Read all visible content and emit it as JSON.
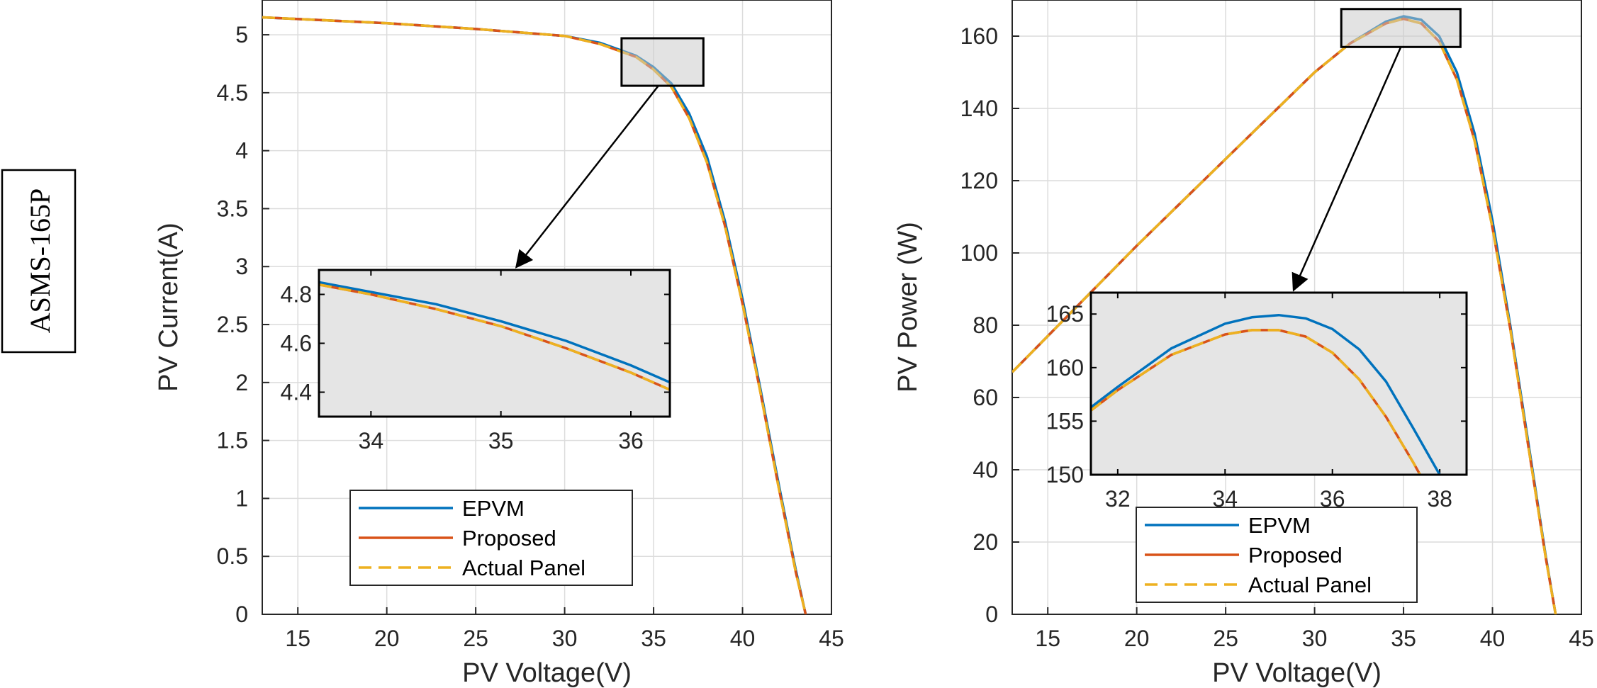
{
  "side_label": "ASMS-165P",
  "colors": {
    "epvm": "#0072BD",
    "proposed": "#D95319",
    "actual": "#EDB120",
    "inset_bg": "#e5e5e5",
    "grid": "#dcdcdc"
  },
  "chart_data": [
    {
      "type": "line",
      "title": "",
      "xlabel": "PV Voltage(V)",
      "ylabel": "PV Current(A)",
      "xlim": [
        13,
        45
      ],
      "ylim": [
        0,
        5.3
      ],
      "xticks": [
        "15",
        "20",
        "25",
        "30",
        "35",
        "40",
        "45"
      ],
      "yticks": [
        "0",
        "0.5",
        "1",
        "1.5",
        "2",
        "2.5",
        "3",
        "3.5",
        "4",
        "4.5",
        "5"
      ],
      "legend": [
        "EPVM",
        "Proposed",
        "Actual Panel"
      ],
      "series": [
        {
          "name": "EPVM",
          "x": [
            13,
            20,
            25,
            30,
            32,
            34,
            35,
            36,
            37,
            38,
            39,
            40,
            41,
            42,
            43,
            43.55
          ],
          "y": [
            5.15,
            5.1,
            5.05,
            4.99,
            4.93,
            4.82,
            4.72,
            4.58,
            4.32,
            3.95,
            3.4,
            2.72,
            1.95,
            1.15,
            0.38,
            0
          ]
        },
        {
          "name": "Proposed",
          "x": [
            13,
            20,
            25,
            30,
            32,
            34,
            35,
            36,
            37,
            38,
            39,
            40,
            41,
            42,
            43,
            43.55
          ],
          "y": [
            5.15,
            5.1,
            5.05,
            4.99,
            4.92,
            4.81,
            4.7,
            4.55,
            4.28,
            3.9,
            3.36,
            2.68,
            1.92,
            1.12,
            0.36,
            0
          ]
        },
        {
          "name": "Actual Panel",
          "x": [
            13,
            20,
            25,
            30,
            32,
            34,
            35,
            36,
            37,
            38,
            39,
            40,
            41,
            42,
            43,
            43.55
          ],
          "y": [
            5.15,
            5.1,
            5.05,
            4.99,
            4.92,
            4.81,
            4.7,
            4.55,
            4.28,
            3.9,
            3.36,
            2.68,
            1.92,
            1.12,
            0.36,
            0
          ]
        }
      ],
      "inset": {
        "xlim": [
          33.6,
          36.3
        ],
        "ylim": [
          4.3,
          4.9
        ],
        "xticks": [
          "34",
          "35",
          "36"
        ],
        "yticks": [
          "4.4",
          "4.6",
          "4.8"
        ],
        "zoom_box": {
          "xlim": [
            33.2,
            37.8
          ],
          "ylim": [
            4.56,
            4.97
          ]
        },
        "series": [
          {
            "name": "EPVM",
            "x": [
              33.6,
              34,
              34.5,
              35,
              35.5,
              36,
              36.3
            ],
            "y": [
              4.85,
              4.81,
              4.76,
              4.69,
              4.61,
              4.51,
              4.44
            ]
          },
          {
            "name": "Proposed",
            "x": [
              33.6,
              34,
              34.5,
              35,
              35.5,
              36,
              36.3
            ],
            "y": [
              4.84,
              4.8,
              4.74,
              4.67,
              4.58,
              4.48,
              4.41
            ]
          },
          {
            "name": "Actual Panel",
            "x": [
              33.6,
              34,
              34.5,
              35,
              35.5,
              36,
              36.3
            ],
            "y": [
              4.84,
              4.8,
              4.74,
              4.67,
              4.58,
              4.48,
              4.41
            ]
          }
        ]
      }
    },
    {
      "type": "line",
      "title": "",
      "xlabel": "PV Voltage(V)",
      "ylabel": "PV Power (W)",
      "xlim": [
        13,
        45
      ],
      "ylim": [
        0,
        170
      ],
      "xticks": [
        "15",
        "20",
        "25",
        "30",
        "35",
        "40",
        "45"
      ],
      "yticks": [
        "0",
        "20",
        "40",
        "60",
        "80",
        "100",
        "120",
        "140",
        "160"
      ],
      "legend": [
        "EPVM",
        "Proposed",
        "Actual Panel"
      ],
      "series": [
        {
          "name": "EPVM",
          "x": [
            13,
            20,
            25,
            30,
            32,
            34,
            35,
            36,
            37,
            38,
            39,
            40,
            41,
            42,
            43,
            43.55
          ],
          "y": [
            67,
            102,
            126,
            150,
            158,
            164,
            165.5,
            164.5,
            160,
            150,
            133,
            109,
            80,
            48,
            16,
            0
          ]
        },
        {
          "name": "Proposed",
          "x": [
            13,
            20,
            25,
            30,
            32,
            34,
            35,
            36,
            37,
            38,
            39,
            40,
            41,
            42,
            43,
            43.55
          ],
          "y": [
            67,
            102,
            126,
            150,
            158,
            163.5,
            164.8,
            163.5,
            158.5,
            148,
            131,
            107,
            79,
            47,
            15.5,
            0
          ]
        },
        {
          "name": "Actual Panel",
          "x": [
            13,
            20,
            25,
            30,
            32,
            34,
            35,
            36,
            37,
            38,
            39,
            40,
            41,
            42,
            43,
            43.55
          ],
          "y": [
            67,
            102,
            126,
            150,
            158,
            163.5,
            164.8,
            163.5,
            158.5,
            148,
            131,
            107,
            79,
            47,
            15.5,
            0
          ]
        }
      ],
      "inset": {
        "xlim": [
          31.5,
          38.5
        ],
        "ylim": [
          150,
          167
        ],
        "xticks": [
          "32",
          "34",
          "36",
          "38"
        ],
        "yticks": [
          "150",
          "155",
          "160",
          "165"
        ],
        "zoom_box": {
          "xlim": [
            31.5,
            38.2
          ],
          "ylim": [
            157,
            167.5
          ]
        },
        "series": [
          {
            "name": "EPVM",
            "x": [
              31.5,
              32,
              33,
              34,
              34.5,
              35,
              35.5,
              36,
              36.5,
              37,
              37.5,
              38
            ],
            "y": [
              156.3,
              158.2,
              161.8,
              164.1,
              164.7,
              164.9,
              164.6,
              163.6,
              161.7,
              158.7,
              154.4,
              150
            ]
          },
          {
            "name": "Proposed",
            "x": [
              31.5,
              32,
              33,
              34,
              34.5,
              35,
              35.5,
              36,
              36.5,
              37,
              37.5,
              37.8
            ],
            "y": [
              156.0,
              157.9,
              161.2,
              163.1,
              163.5,
              163.5,
              162.9,
              161.4,
              158.9,
              155.4,
              151.2,
              148.5
            ]
          },
          {
            "name": "Actual Panel",
            "x": [
              31.5,
              32,
              33,
              34,
              34.5,
              35,
              35.5,
              36,
              36.5,
              37,
              37.5,
              37.8
            ],
            "y": [
              156.0,
              157.9,
              161.2,
              163.1,
              163.5,
              163.5,
              162.9,
              161.4,
              158.9,
              155.4,
              151.2,
              148.5
            ]
          }
        ]
      }
    }
  ]
}
